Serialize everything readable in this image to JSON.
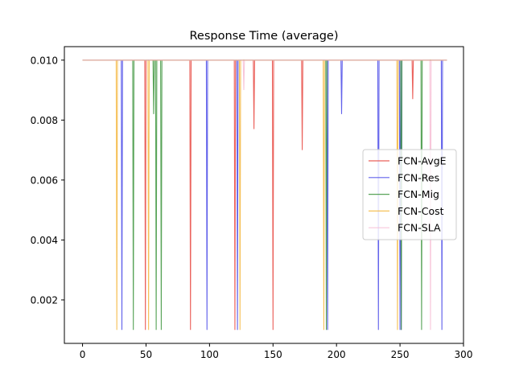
{
  "chart_data": {
    "type": "line",
    "title": "Response Time (average)",
    "xlabel": "",
    "ylabel": "",
    "xlim": [
      -14.3,
      300
    ],
    "ylim": [
      0.00055,
      0.01045
    ],
    "x_ticks": [
      0,
      50,
      100,
      150,
      200,
      250,
      300
    ],
    "y_ticks": [
      0.002,
      0.004,
      0.006,
      0.008,
      0.01
    ],
    "x_tick_labels": [
      "0",
      "50",
      "100",
      "150",
      "200",
      "250",
      "300"
    ],
    "y_tick_labels": [
      "0.002",
      "0.004",
      "0.006",
      "0.008",
      "0.010"
    ],
    "grid": false,
    "legend_position": "center-right",
    "baseline": 0.01,
    "x_range": [
      0,
      287
    ],
    "series": [
      {
        "name": "FCN-AvgE",
        "color": "#e8473f",
        "dips": [
          {
            "x": 49.5,
            "y": 0.001
          },
          {
            "x": 85,
            "y": 0.001
          },
          {
            "x": 120,
            "y": 0.001
          },
          {
            "x": 135,
            "y": 0.0077
          },
          {
            "x": 150,
            "y": 0.001
          },
          {
            "x": 173,
            "y": 0.007
          },
          {
            "x": 260,
            "y": 0.0087
          }
        ]
      },
      {
        "name": "FCN-Res",
        "color": "#4848e8",
        "dips": [
          {
            "x": 31,
            "y": 0.001
          },
          {
            "x": 98,
            "y": 0.001
          },
          {
            "x": 122,
            "y": 0.001
          },
          {
            "x": 193,
            "y": 0.001
          },
          {
            "x": 204,
            "y": 0.0082
          },
          {
            "x": 233,
            "y": 0.001
          },
          {
            "x": 250,
            "y": 0.001
          },
          {
            "x": 251,
            "y": 0.001
          },
          {
            "x": 283,
            "y": 0.001
          }
        ]
      },
      {
        "name": "FCN-Mig",
        "color": "#3c943c",
        "dips": [
          {
            "x": 40,
            "y": 0.001
          },
          {
            "x": 56,
            "y": 0.0082
          },
          {
            "x": 58,
            "y": 0.001
          },
          {
            "x": 62,
            "y": 0.001
          },
          {
            "x": 192,
            "y": 0.001
          },
          {
            "x": 251,
            "y": 0.001
          },
          {
            "x": 267,
            "y": 0.001
          }
        ]
      },
      {
        "name": "FCN-Cost",
        "color": "#f4b63c",
        "dips": [
          {
            "x": 27,
            "y": 0.001
          },
          {
            "x": 52,
            "y": 0.001
          },
          {
            "x": 124,
            "y": 0.001
          },
          {
            "x": 190,
            "y": 0.001
          },
          {
            "x": 248,
            "y": 0.001
          }
        ]
      },
      {
        "name": "FCN-SLA",
        "color": "#f7bcd4",
        "dips": [
          {
            "x": 127,
            "y": 0.009
          },
          {
            "x": 274,
            "y": 0.001
          }
        ]
      }
    ]
  }
}
